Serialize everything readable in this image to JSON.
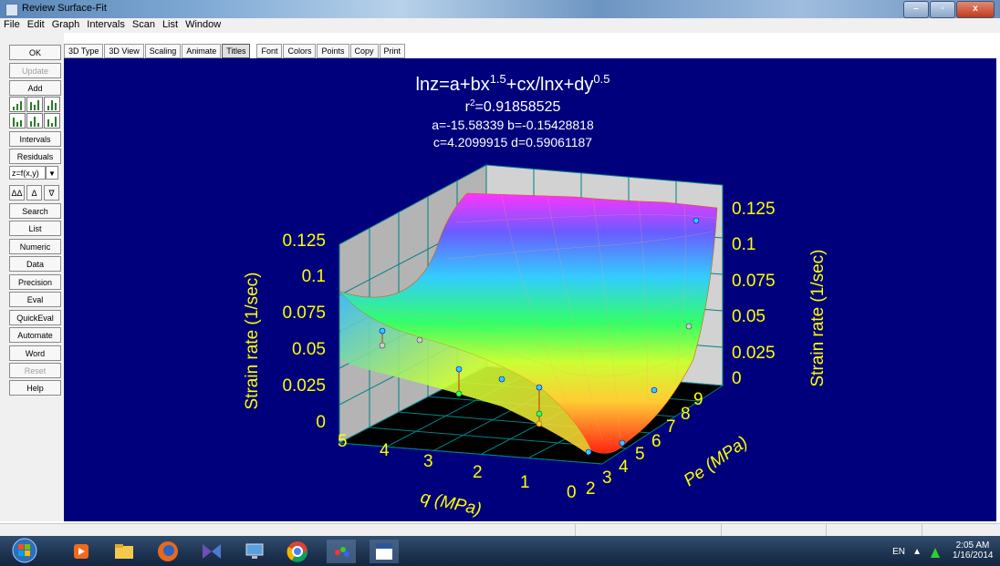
{
  "window": {
    "title": "Review Surface-Fit",
    "buttons": {
      "minimize": "–",
      "maximize": "▫",
      "close": "x"
    }
  },
  "menu": [
    "File",
    "Edit",
    "Graph",
    "Intervals",
    "Scan",
    "List",
    "Window"
  ],
  "toolbar": [
    "3D Type",
    "3D View",
    "Scaling",
    "Animate",
    "Titles",
    "Font",
    "Colors",
    "Points",
    "Copy",
    "Print"
  ],
  "left_panel": {
    "ok": "OK",
    "update": "Update",
    "add": "Add",
    "intervals": "Intervals",
    "residuals": "Residuals",
    "selector_value": "z=f(x,y)",
    "sort_buttons": [
      "ΔΔ",
      "Δ",
      "∇"
    ],
    "search": "Search",
    "list": "List",
    "numeric": "Numeric",
    "data": "Data",
    "precision": "Precision",
    "eval": "Eval",
    "quickeval": "QuickEval",
    "automate": "Automate",
    "word": "Word",
    "reset": "Reset",
    "help": "Help"
  },
  "graph": {
    "equation": {
      "base": "lnz=a+bx",
      "exp1": "1.5",
      "mid": "+cx/lnx+dy",
      "exp2": "0.5"
    },
    "r2": {
      "label": "r",
      "sup": "2",
      "value": "=0.91858525"
    },
    "params_line1": "a=-15.58339 b=-0.15428818",
    "params_line2": "c=4.2099915 d=0.59061187",
    "left_axis_label": "Strain rate (1/sec)",
    "right_axis_label": "Strain rate (1/sec)",
    "x_axis_label": "q (MPa)",
    "y_axis_label": "Pe (MPa)",
    "left_ticks": [
      "0.125",
      "0.1",
      "0.075",
      "0.05",
      "0.025",
      "0"
    ],
    "right_ticks": [
      "0.125",
      "0.1",
      "0.075",
      "0.05",
      "0.025",
      "0"
    ],
    "q_ticks": [
      "5",
      "4",
      "3",
      "2",
      "1",
      "0"
    ],
    "pe_ticks": [
      "2",
      "3",
      "4",
      "5",
      "6",
      "7",
      "8",
      "9"
    ],
    "colors": {
      "background": "#00007d",
      "text": "#ffff00"
    }
  },
  "taskbar": {
    "lang": "EN",
    "time": "2:05 AM",
    "date": "1/16/2014"
  }
}
